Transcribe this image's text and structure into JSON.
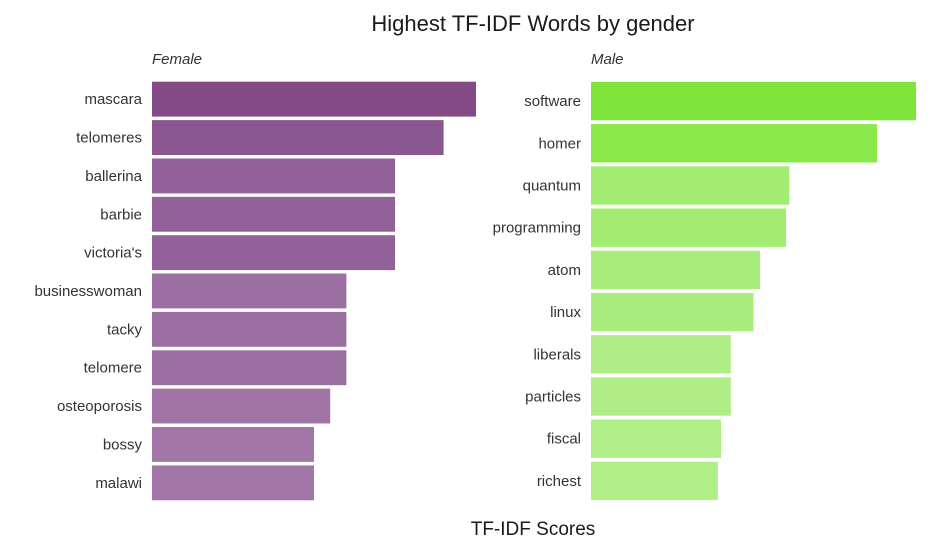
{
  "chart_data": {
    "type": "bar",
    "orientation": "horizontal",
    "title": "Highest TF-IDF Words by gender",
    "xlabel": "TF-IDF Scores",
    "ylabel": "",
    "grid": false,
    "legend": "none",
    "panels": [
      {
        "name": "Female",
        "categories": [
          "mascara",
          "telomeres",
          "ballerina",
          "barbie",
          "victoria's",
          "businesswoman",
          "tacky",
          "telomere",
          "osteoporosis",
          "bossy",
          "malawi"
        ],
        "values": [
          1.0,
          0.9,
          0.75,
          0.75,
          0.75,
          0.6,
          0.6,
          0.6,
          0.55,
          0.5,
          0.5
        ],
        "colors": [
          "#834a86",
          "#8b5790",
          "#93619a",
          "#93619a",
          "#93619a",
          "#9c6fa2",
          "#9c6fa2",
          "#9c6fa2",
          "#a075a5",
          "#a277a7",
          "#a277a7"
        ]
      },
      {
        "name": "Male",
        "categories": [
          "software",
          "homer",
          "quantum",
          "programming",
          "atom",
          "linux",
          "liberals",
          "particles",
          "fiscal",
          "richest"
        ],
        "values": [
          1.0,
          0.88,
          0.61,
          0.6,
          0.52,
          0.5,
          0.43,
          0.43,
          0.4,
          0.39
        ],
        "colors": [
          "#80e53a",
          "#8ae84b",
          "#a3ec72",
          "#a3ec72",
          "#a8ed7b",
          "#aaed7e",
          "#aeee85",
          "#aeee85",
          "#b0ef88",
          "#b0ef88"
        ]
      }
    ]
  }
}
